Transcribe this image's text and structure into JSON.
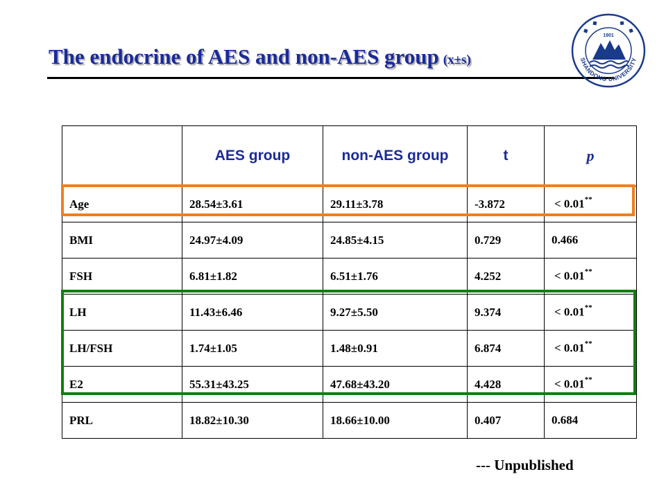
{
  "slide": {
    "title": "The endocrine of AES and non-AES group",
    "title_sub": "(x±s)",
    "note": "--- Unpublished",
    "logo": {
      "text": "SHANDONG UNIVERSITY",
      "year": "1901",
      "color": "#1a3a8a"
    }
  },
  "table": {
    "headers": [
      "",
      "AES group",
      "non-AES group",
      "t",
      "p"
    ],
    "rows": [
      {
        "label": "Age",
        "aes": "28.54±3.61",
        "non": "29.11±3.78",
        "t": "-3.872",
        "p": "< 0.01",
        "sig": "**"
      },
      {
        "label": "BMI",
        "aes": "24.97±4.09",
        "non": "24.85±4.15",
        "t": "0.729",
        "p": "0.466",
        "sig": ""
      },
      {
        "label": "FSH",
        "aes": "6.81±1.82",
        "non": "6.51±1.76",
        "t": "4.252",
        "p": "< 0.01",
        "sig": "**"
      },
      {
        "label": "LH",
        "aes": "11.43±6.46",
        "non": "9.27±5.50",
        "t": "9.374",
        "p": "< 0.01",
        "sig": "**"
      },
      {
        "label": "LH/FSH",
        "aes": "1.74±1.05",
        "non": "1.48±0.91",
        "t": "6.874",
        "p": "< 0.01",
        "sig": "**"
      },
      {
        "label": "E2",
        "aes": "55.31±43.25",
        "non": "47.68±43.20",
        "t": "4.428",
        "p": "< 0.01",
        "sig": "**"
      },
      {
        "label": "PRL",
        "aes": "18.82±10.30",
        "non": "18.66±10.00",
        "t": "0.407",
        "p": "0.684",
        "sig": ""
      }
    ]
  },
  "colors": {
    "title": "#1a2a9a",
    "highlight_orange": "#f07f1c",
    "highlight_green": "#0f7f0f"
  }
}
